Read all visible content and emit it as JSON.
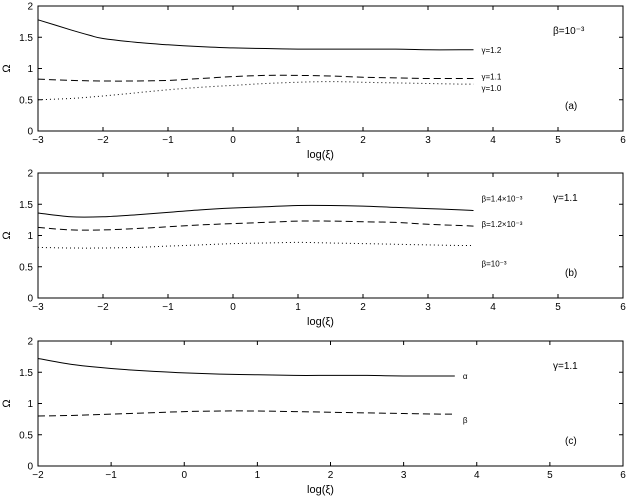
{
  "chart_data": [
    {
      "type": "line",
      "panel_label": "(a)",
      "annotation": "β=10⁻³",
      "xlabel": "log(ξ)",
      "ylabel": "Ω",
      "xlim": [
        -3,
        6
      ],
      "ylim": [
        0,
        2
      ],
      "xticks": [
        -3,
        -2,
        -1,
        0,
        1,
        2,
        3,
        4,
        5,
        6
      ],
      "yticks": [
        0,
        0.5,
        1,
        1.5,
        2
      ],
      "series": [
        {
          "name": "γ=1.2",
          "style": "solid",
          "x": [
            -3,
            -2.5,
            -2.2,
            -2,
            -1.5,
            -1,
            -0.5,
            0,
            0.5,
            1,
            1.5,
            2,
            2.5,
            3,
            3.5,
            3.7
          ],
          "y": [
            1.78,
            1.62,
            1.53,
            1.48,
            1.42,
            1.38,
            1.35,
            1.33,
            1.32,
            1.31,
            1.31,
            1.31,
            1.31,
            1.3,
            1.3,
            1.3
          ]
        },
        {
          "name": "γ=1.1",
          "style": "dashed",
          "x": [
            -3,
            -2.5,
            -2,
            -1.5,
            -1,
            -0.5,
            0,
            0.5,
            1,
            1.5,
            2,
            2.5,
            3,
            3.5,
            3.7
          ],
          "y": [
            0.83,
            0.81,
            0.8,
            0.8,
            0.81,
            0.84,
            0.87,
            0.89,
            0.89,
            0.88,
            0.86,
            0.85,
            0.84,
            0.84,
            0.84
          ]
        },
        {
          "name": "γ=1.0",
          "style": "dotted",
          "x": [
            -3,
            -2.5,
            -2,
            -1.5,
            -1,
            -0.5,
            0,
            0.5,
            1,
            1.5,
            2,
            2.5,
            3,
            3.5,
            3.7
          ],
          "y": [
            0.5,
            0.52,
            0.56,
            0.61,
            0.66,
            0.7,
            0.73,
            0.76,
            0.78,
            0.79,
            0.78,
            0.77,
            0.76,
            0.75,
            0.75
          ]
        }
      ]
    },
    {
      "type": "line",
      "panel_label": "(b)",
      "annotation": "γ=1.1",
      "xlabel": "log(ξ)",
      "ylabel": "Ω",
      "xlim": [
        -3,
        6
      ],
      "ylim": [
        0,
        2
      ],
      "xticks": [
        -3,
        -2,
        -1,
        0,
        1,
        2,
        3,
        4,
        5,
        6
      ],
      "yticks": [
        0,
        0.5,
        1,
        1.5,
        2
      ],
      "series": [
        {
          "name": "β=1.4×10⁻³",
          "style": "solid",
          "x": [
            -3,
            -2.5,
            -2,
            -1.5,
            -1,
            -0.5,
            0,
            0.5,
            1,
            1.5,
            2,
            2.5,
            3,
            3.5,
            3.7
          ],
          "y": [
            1.36,
            1.3,
            1.3,
            1.33,
            1.37,
            1.41,
            1.44,
            1.46,
            1.48,
            1.48,
            1.47,
            1.45,
            1.43,
            1.41,
            1.4
          ]
        },
        {
          "name": "β=1.2×10⁻³",
          "style": "dashed",
          "x": [
            -3,
            -2.5,
            -2,
            -1.5,
            -1,
            -0.5,
            0,
            0.5,
            1,
            1.5,
            2,
            2.5,
            3,
            3.5,
            3.7
          ],
          "y": [
            1.13,
            1.09,
            1.09,
            1.11,
            1.14,
            1.17,
            1.19,
            1.21,
            1.23,
            1.23,
            1.22,
            1.21,
            1.18,
            1.16,
            1.15
          ]
        },
        {
          "name": "β=10⁻³",
          "style": "dotted",
          "x": [
            -3,
            -2.5,
            -2,
            -1.5,
            -1,
            -0.5,
            0,
            0.5,
            1,
            1.5,
            2,
            2.5,
            3,
            3.5,
            3.7
          ],
          "y": [
            0.81,
            0.8,
            0.8,
            0.81,
            0.83,
            0.85,
            0.87,
            0.88,
            0.89,
            0.88,
            0.87,
            0.86,
            0.85,
            0.84,
            0.84
          ]
        }
      ]
    },
    {
      "type": "line",
      "panel_label": "(c)",
      "annotation": "γ=1.1",
      "xlabel": "log(ξ)",
      "ylabel": "Ω",
      "xlim": [
        -2,
        6
      ],
      "ylim": [
        0,
        2
      ],
      "xticks": [
        -2,
        -1,
        0,
        1,
        2,
        3,
        4,
        5,
        6
      ],
      "yticks": [
        0,
        0.5,
        1,
        1.5,
        2
      ],
      "series": [
        {
          "name": "α",
          "style": "solid",
          "x": [
            -2,
            -1.5,
            -1,
            -0.5,
            0,
            0.5,
            1,
            1.5,
            2,
            2.5,
            3,
            3.5,
            3.7
          ],
          "y": [
            1.72,
            1.62,
            1.56,
            1.52,
            1.49,
            1.47,
            1.46,
            1.45,
            1.45,
            1.45,
            1.44,
            1.44,
            1.44
          ]
        },
        {
          "name": "β",
          "style": "dashed",
          "x": [
            -2,
            -1.5,
            -1,
            -0.5,
            0,
            0.5,
            1,
            1.5,
            2,
            2.5,
            3,
            3.5,
            3.7
          ],
          "y": [
            0.8,
            0.81,
            0.83,
            0.85,
            0.87,
            0.88,
            0.88,
            0.87,
            0.86,
            0.85,
            0.84,
            0.83,
            0.83
          ]
        }
      ]
    }
  ]
}
